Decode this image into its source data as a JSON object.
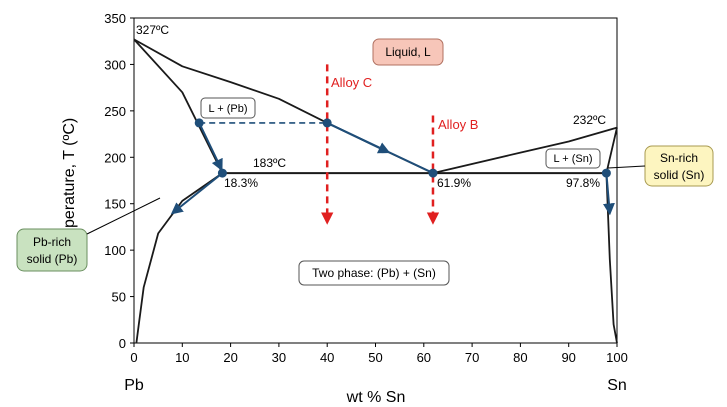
{
  "chart_data": {
    "type": "line",
    "title": "",
    "xlabel": "wt % Sn",
    "ylabel": "Temperature, T (ºC)",
    "xlim": [
      0,
      100
    ],
    "ylim": [
      0,
      350
    ],
    "x_ticks": [
      0,
      10,
      20,
      30,
      40,
      50,
      60,
      70,
      80,
      90,
      100
    ],
    "y_ticks": [
      0,
      50,
      100,
      150,
      200,
      250,
      300,
      350
    ],
    "x_end_labels": {
      "left": "Pb",
      "right": "Sn"
    },
    "grid": false,
    "colors": {
      "phase_line": "#1a1a1a",
      "path": "#1f4e79",
      "alloy": "#e02020",
      "liquid_box": "#f7c6b9",
      "pb_box": "#c9e2c0",
      "sn_box": "#fdf5c0"
    },
    "series": [
      {
        "name": "",
        "role": "liquidus-left",
        "x": [
          0,
          10,
          20,
          30,
          40,
          50,
          61.9
        ],
        "y": [
          327,
          298,
          281,
          263,
          237,
          212,
          183
        ]
      },
      {
        "name": "",
        "role": "solidus-left",
        "x": [
          0,
          10,
          18.3
        ],
        "y": [
          327,
          270,
          183
        ]
      },
      {
        "name": "",
        "role": "solvus-left",
        "x": [
          18.3,
          10,
          5,
          2,
          1,
          0.5
        ],
        "y": [
          183,
          153,
          118,
          60,
          20,
          0
        ]
      },
      {
        "name": "",
        "role": "eutectic",
        "x": [
          18.3,
          97.8
        ],
        "y": [
          183,
          183
        ]
      },
      {
        "name": "",
        "role": "liquidus-right",
        "x": [
          61.9,
          80,
          90,
          100
        ],
        "y": [
          183,
          205,
          217,
          232
        ]
      },
      {
        "name": "",
        "role": "solidus-right",
        "x": [
          97.8,
          100
        ],
        "y": [
          183,
          232
        ]
      },
      {
        "name": "",
        "role": "solvus-right",
        "x": [
          97.8,
          98.5,
          99.3,
          100
        ],
        "y": [
          183,
          90,
          20,
          0
        ]
      }
    ],
    "cooling_path": {
      "x": [
        40,
        61.9
      ],
      "y": [
        237,
        183
      ],
      "tie_line": {
        "x": [
          13.5,
          40
        ],
        "y": [
          237,
          237
        ]
      },
      "arrow_left": {
        "x": [
          13.5,
          18.3
        ],
        "y": [
          237,
          183
        ]
      },
      "arrow_down_left": {
        "x": [
          18.3,
          8
        ],
        "y": [
          183,
          140
        ]
      },
      "arrow_down_right": {
        "x": [
          97.8,
          98.5
        ],
        "y": [
          183,
          140
        ]
      },
      "points": [
        {
          "x": 13.5,
          "y": 237
        },
        {
          "x": 40,
          "y": 237
        },
        {
          "x": 18.3,
          "y": 183
        },
        {
          "x": 61.9,
          "y": 183
        },
        {
          "x": 97.8,
          "y": 183
        }
      ]
    },
    "alloy_lines": [
      {
        "label": "Alloy C",
        "x": 40,
        "y_from": 300,
        "y_to": 130
      },
      {
        "label": "Alloy B",
        "x": 61.9,
        "y_from": 245,
        "y_to": 130
      }
    ],
    "annotations": {
      "t327": "327ºC",
      "t232": "232ºC",
      "t183": "183ºC",
      "c183": "18.3%",
      "c619": "61.9%",
      "c978": "97.8%",
      "liquid": "Liquid, L",
      "l_pb": "L + (Pb)",
      "l_sn": "L + (Sn)",
      "two_phase": "Two phase: (Pb) + (Sn)",
      "pb_rich_1": "Pb-rich",
      "pb_rich_2": "solid (Pb)",
      "sn_rich_1": "Sn-rich",
      "sn_rich_2": "solid (Sn)"
    }
  }
}
